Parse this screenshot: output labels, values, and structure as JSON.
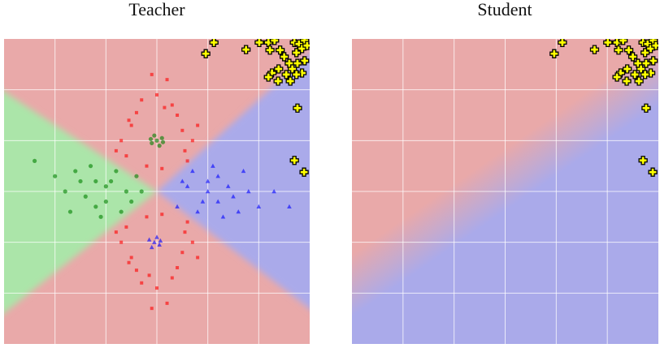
{
  "chart_data": [
    {
      "type": "scatter",
      "title": "Teacher",
      "xlim": [
        -3,
        3
      ],
      "ylim": [
        -3,
        3
      ],
      "xticks": [
        -2,
        -1,
        0,
        1,
        2
      ],
      "yticks": [
        -2,
        -1,
        0,
        1,
        2
      ],
      "grid": true,
      "series": [
        {
          "color": "#ff0000",
          "marker": "square",
          "x": [
            0.5,
            -0.5,
            0.3,
            -0.3,
            0.6,
            -0.6,
            0.7,
            -0.7,
            0,
            0.1,
            -0.2,
            0.4,
            -0.4,
            0.55,
            -0.55,
            0.2,
            -0.1,
            0.8,
            -0.8,
            0.15,
            0.5,
            -0.5,
            0.3,
            -0.3,
            0.6,
            -0.6,
            0.7,
            -0.7,
            0,
            0.1,
            -0.2,
            0.4,
            -0.4,
            0.55,
            -0.55,
            0.2,
            -0.1,
            0.8,
            -0.8,
            -0.15
          ],
          "y": [
            1.2,
            1.3,
            1.7,
            1.8,
            0.6,
            0.7,
            1.0,
            1.0,
            1.9,
            0.45,
            0.5,
            1.5,
            1.55,
            0.8,
            1.4,
            2.2,
            2.3,
            1.3,
            0.8,
            1.65,
            -1.2,
            -1.3,
            -1.7,
            -1.8,
            -0.6,
            -0.7,
            -1.0,
            -1.0,
            -1.9,
            -0.45,
            -0.5,
            -1.5,
            -1.55,
            -0.8,
            -1.4,
            -2.2,
            -2.3,
            -1.3,
            -0.8,
            -1.65
          ]
        },
        {
          "color": "#008000",
          "marker": "circle",
          "x": [
            0,
            0.1,
            -0.1,
            0.05,
            -0.05,
            0.12,
            -0.12,
            -1,
            -1.5,
            -0.6,
            -1.2,
            -0.8,
            -1.8,
            -1.3,
            -0.5,
            -1.1,
            -2.0,
            -0.9,
            -1.4,
            -0.7,
            -1.6,
            -2.4,
            -0.4,
            -1.0,
            -1.7,
            -1.2,
            -0.3
          ],
          "y": [
            1,
            1.05,
            0.95,
            0.9,
            1.1,
            0.97,
            1.03,
            0.1,
            0.2,
            0.0,
            -0.3,
            0.4,
            0.0,
            0.5,
            -0.2,
            -0.5,
            0.3,
            0.2,
            -0.1,
            -0.4,
            0.4,
            0.6,
            0.3,
            -0.2,
            -0.4,
            0.2,
            0.0
          ]
        },
        {
          "color": "#0000ff",
          "marker": "triangle",
          "x": [
            -0.05,
            0.05,
            -0.15,
            0,
            -0.1,
            0.07,
            1,
            1.5,
            0.6,
            1.2,
            0.8,
            1.8,
            1.3,
            0.5,
            1.1,
            2.0,
            0.9,
            1.4,
            0.7,
            1.6,
            2.3,
            0.4,
            1.0,
            1.7,
            1.2,
            2.6
          ],
          "y": [
            -1,
            -1.05,
            -0.95,
            -0.9,
            -1.1,
            -0.97,
            0.0,
            -0.1,
            0.1,
            0.3,
            -0.4,
            0.0,
            -0.5,
            0.2,
            0.5,
            -0.3,
            -0.2,
            0.1,
            0.4,
            -0.4,
            0.0,
            -0.3,
            0.2,
            0.4,
            -0.2,
            -0.3
          ]
        },
        {
          "color": "#ffff00",
          "marker": "plus",
          "x": [
            1.12,
            0.96,
            1.75,
            2.01,
            2.19,
            2.31,
            2.22,
            2.42,
            2.5,
            2.6,
            2.39,
            2.26,
            2.19,
            2.7,
            2.79,
            2.9,
            2.74,
            2.85,
            2.95,
            2.9,
            2.76,
            2.66,
            2.54,
            2.85,
            2.74,
            2.76,
            2.7,
            2.89,
            2.62,
            2.38
          ],
          "y": [
            2.93,
            2.71,
            2.79,
            2.93,
            2.93,
            2.97,
            2.78,
            2.78,
            2.65,
            2.52,
            2.41,
            2.33,
            2.25,
            2.93,
            2.9,
            2.97,
            2.73,
            2.81,
            2.87,
            2.57,
            2.52,
            2.41,
            2.3,
            2.33,
            2.3,
            1.64,
            0.61,
            0.38,
            2.17,
            2.17
          ]
        }
      ]
    },
    {
      "type": "scatter",
      "title": "Student",
      "xlim": [
        -3,
        3
      ],
      "ylim": [
        -3,
        3
      ],
      "xticks": [
        -2,
        -1,
        0,
        1,
        2
      ],
      "yticks": [
        -2,
        -1,
        0,
        1,
        2
      ],
      "grid": true,
      "series": [
        {
          "color": "#ffff00",
          "marker": "plus",
          "x": [
            1.12,
            0.96,
            1.75,
            2.01,
            2.19,
            2.31,
            2.22,
            2.42,
            2.5,
            2.6,
            2.39,
            2.26,
            2.19,
            2.7,
            2.79,
            2.9,
            2.74,
            2.85,
            2.95,
            2.9,
            2.76,
            2.66,
            2.54,
            2.85,
            2.74,
            2.76,
            2.7,
            2.89,
            2.62,
            2.38
          ],
          "y": [
            2.93,
            2.71,
            2.79,
            2.93,
            2.93,
            2.97,
            2.78,
            2.78,
            2.65,
            2.52,
            2.41,
            2.33,
            2.25,
            2.93,
            2.9,
            2.97,
            2.73,
            2.81,
            2.87,
            2.57,
            2.52,
            2.41,
            2.3,
            2.33,
            2.3,
            1.64,
            0.61,
            0.38,
            2.17,
            2.17
          ]
        }
      ]
    }
  ]
}
